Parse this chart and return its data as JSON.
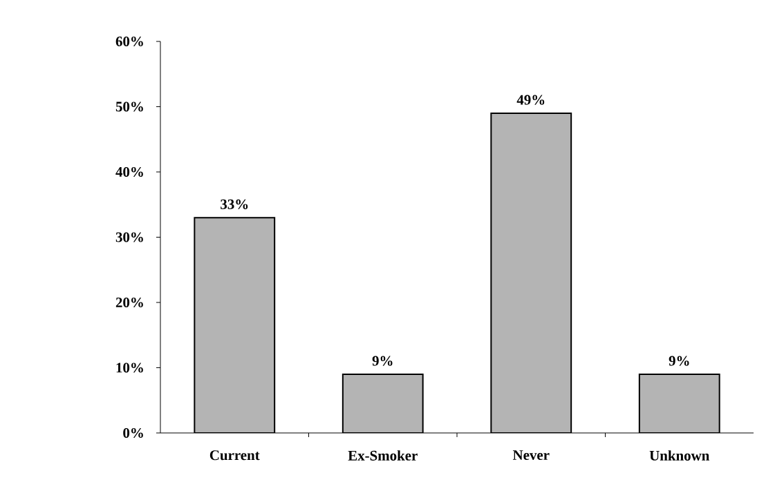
{
  "chart_data": {
    "type": "bar",
    "categories": [
      "Current",
      "Ex-Smoker",
      "Never",
      "Unknown"
    ],
    "values": [
      33,
      9,
      49,
      9
    ],
    "value_labels": [
      "33%",
      "9%",
      "49%",
      "9%"
    ],
    "color": "#b4b4b4",
    "ylim": [
      0,
      60
    ],
    "yticks": [
      {
        "value": 0,
        "label": "0%"
      },
      {
        "value": 10,
        "label": "10%"
      },
      {
        "value": 20,
        "label": "20%"
      },
      {
        "value": 30,
        "label": "30%"
      },
      {
        "value": 40,
        "label": "40%"
      },
      {
        "value": 50,
        "label": "50%"
      },
      {
        "value": 60,
        "label": "60%"
      }
    ],
    "grid": false
  }
}
